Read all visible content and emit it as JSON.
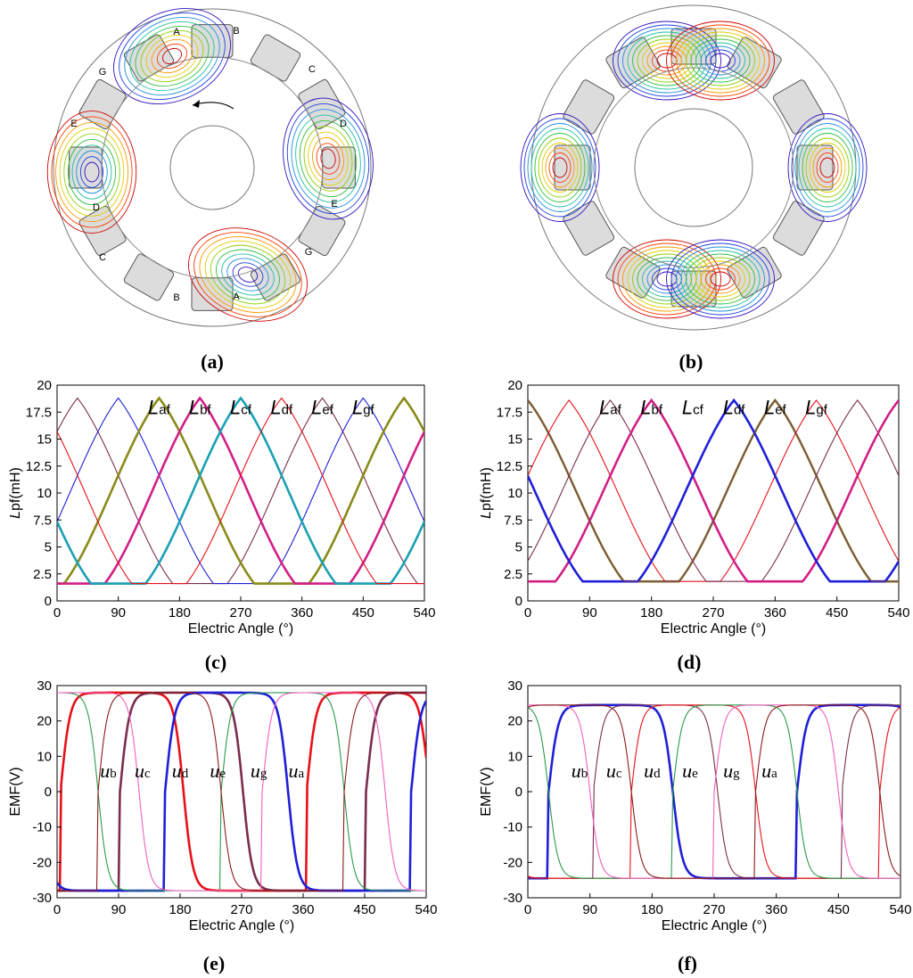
{
  "colors": {
    "red": "#e8101a",
    "blue": "#1f1fd8",
    "maroon": "#7a2d4e",
    "olive": "#8a8a1a",
    "magenta": "#d21f86",
    "teal": "#1aa0b4",
    "purple": "#7a3a6a",
    "green": "#2a9a4a",
    "pink": "#f060c0",
    "darkred": "#8b1a1a"
  },
  "panels": {
    "a": {
      "label": "(a)",
      "letters": [
        "A",
        "B",
        "C",
        "D",
        "E",
        "G",
        "E",
        "D",
        "C",
        "B",
        "A",
        "G"
      ]
    },
    "b": {
      "label": "(b)"
    },
    "c": {
      "label": "(c)"
    },
    "d": {
      "label": "(d)"
    },
    "e": {
      "label": "(e)"
    },
    "f": {
      "label": "(f)"
    }
  },
  "chart_data": [
    {
      "id": "c",
      "type": "line",
      "xlabel": "Electric Angle (°)",
      "ylabel_main": "L",
      "ylabel_sub": "pf(mH)",
      "xlim": [
        0,
        540
      ],
      "ylim": [
        0,
        20
      ],
      "xticks": [
        0,
        90,
        180,
        270,
        360,
        450,
        540
      ],
      "yticks": [
        0,
        2.5,
        5,
        7.5,
        10,
        12.5,
        15,
        17.5,
        20
      ],
      "ytick_labels": [
        "0",
        "2.5",
        "5",
        "7.5",
        "10",
        "12.5",
        "15",
        "17.5",
        "20"
      ],
      "series_labels": [
        {
          "main": "L",
          "sub": "af",
          "x": 150
        },
        {
          "main": "L",
          "sub": "bf",
          "x": 210
        },
        {
          "main": "L",
          "sub": "cf",
          "x": 270
        },
        {
          "main": "L",
          "sub": "df",
          "x": 330
        },
        {
          "main": "L",
          "sub": "ef",
          "x": 390
        },
        {
          "main": "L",
          "sub": "gf",
          "x": 450
        }
      ],
      "series": [
        {
          "color": "#7a2d4e",
          "peak_x": 30,
          "thick": false
        },
        {
          "color": "#1f1fd8",
          "peak_x": 90,
          "thick": false
        },
        {
          "color": "#8a8a1a",
          "peak_x": 150,
          "thick": true
        },
        {
          "color": "#d21f86",
          "peak_x": 210,
          "thick": true
        },
        {
          "color": "#1aa0b4",
          "peak_x": 270,
          "thick": true
        },
        {
          "color": "#e8101a",
          "peak_x": 330,
          "thick": false
        }
      ],
      "max": 18.8,
      "min": 1.6
    },
    {
      "id": "d",
      "type": "line",
      "xlabel": "Electric Angle (°)",
      "ylabel_main": "L",
      "ylabel_sub": "pf(mH)",
      "xlim": [
        0,
        540
      ],
      "ylim": [
        0,
        20
      ],
      "xticks": [
        0,
        90,
        180,
        270,
        360,
        450,
        540
      ],
      "yticks": [
        0,
        2.5,
        5,
        7.5,
        10,
        12.5,
        15,
        17.5,
        20
      ],
      "ytick_labels": [
        "0",
        "2.5",
        "5",
        "7.5",
        "10",
        "12.5",
        "15",
        "17.5",
        "20"
      ],
      "series_labels": [
        {
          "main": "L",
          "sub": "af",
          "x": 120
        },
        {
          "main": "L",
          "sub": "bf",
          "x": 180
        },
        {
          "main": "L",
          "sub": "cf",
          "x": 240
        },
        {
          "main": "L",
          "sub": "df",
          "x": 300
        },
        {
          "main": "L",
          "sub": "ef",
          "x": 360
        },
        {
          "main": "L",
          "sub": "gf",
          "x": 420
        }
      ],
      "series": [
        {
          "color": "#8a8a1a",
          "peak_x": 0,
          "thick": true
        },
        {
          "color": "#e8101a",
          "peak_x": 60,
          "thick": false
        },
        {
          "color": "#7a2d4e",
          "peak_x": 120,
          "thick": false
        },
        {
          "color": "#d21f86",
          "peak_x": 180,
          "thick": true
        },
        {
          "color": "#1f1fd8",
          "peak_x": 300,
          "thick": true
        },
        {
          "color": "#7a3a6a",
          "peak_x": 360,
          "thick": false
        }
      ],
      "max": 18.6,
      "min": 1.8
    },
    {
      "id": "e",
      "type": "line",
      "xlabel": "Electric Angle (°)",
      "ylabel": "EMF(V)",
      "xlim": [
        0,
        540
      ],
      "ylim": [
        -30,
        30
      ],
      "xticks": [
        0,
        90,
        180,
        270,
        360,
        450,
        540
      ],
      "yticks": [
        -30,
        -20,
        -10,
        0,
        10,
        20,
        30
      ],
      "ytick_labels": [
        "-30",
        "-20",
        "-10",
        "0",
        "10",
        "20",
        "30"
      ],
      "series_labels": [
        {
          "main": "u",
          "sub": "b",
          "x": 75
        },
        {
          "main": "u",
          "sub": "c",
          "x": 125
        },
        {
          "main": "u",
          "sub": "d",
          "x": 180
        },
        {
          "main": "u",
          "sub": "e",
          "x": 235
        },
        {
          "main": "u",
          "sub": "g",
          "x": 295
        },
        {
          "main": "u",
          "sub": "a",
          "x": 350
        }
      ],
      "series": [
        {
          "color": "#e8101a",
          "switch_x": 5,
          "thick": true
        },
        {
          "color": "#7a2d4e",
          "switch_x": 92,
          "thick": true
        },
        {
          "color": "#1f1fd8",
          "switch_x": 158,
          "thick": true
        },
        {
          "color": "#2a9a4a",
          "switch_x": 240,
          "thick": false
        },
        {
          "color": "#f060c0",
          "switch_x": 300,
          "thick": false
        },
        {
          "color": "#8b1a1a",
          "switch_x": 60,
          "thick": false
        }
      ],
      "amp": 28
    },
    {
      "id": "f",
      "type": "line",
      "xlabel": "Electric Angle (°)",
      "ylabel": "EMF(V)",
      "xlim": [
        0,
        540
      ],
      "ylim": [
        -30,
        30
      ],
      "xticks": [
        0,
        90,
        180,
        270,
        360,
        450,
        540
      ],
      "yticks": [
        -30,
        -20,
        -10,
        0,
        10,
        20,
        30
      ],
      "ytick_labels": [
        "-30",
        "-20",
        "-10",
        "0",
        "10",
        "20",
        "30"
      ],
      "series_labels": [
        {
          "main": "u",
          "sub": "b",
          "x": 75
        },
        {
          "main": "u",
          "sub": "c",
          "x": 125
        },
        {
          "main": "u",
          "sub": "d",
          "x": 180
        },
        {
          "main": "u",
          "sub": "e",
          "x": 235
        },
        {
          "main": "u",
          "sub": "g",
          "x": 295
        },
        {
          "main": "u",
          "sub": "a",
          "x": 350
        }
      ],
      "series": [
        {
          "color": "#1f1fd8",
          "switch_x": 30,
          "thick": true
        },
        {
          "color": "#7a2d4e",
          "switch_x": 95,
          "thick": false
        },
        {
          "color": "#e8101a",
          "switch_x": 150,
          "thick": false
        },
        {
          "color": "#2a9a4a",
          "switch_x": 210,
          "thick": false
        },
        {
          "color": "#f060c0",
          "switch_x": 270,
          "thick": false
        },
        {
          "color": "#8b1a1a",
          "switch_x": 330,
          "thick": false
        }
      ],
      "amp": 24.5
    }
  ]
}
